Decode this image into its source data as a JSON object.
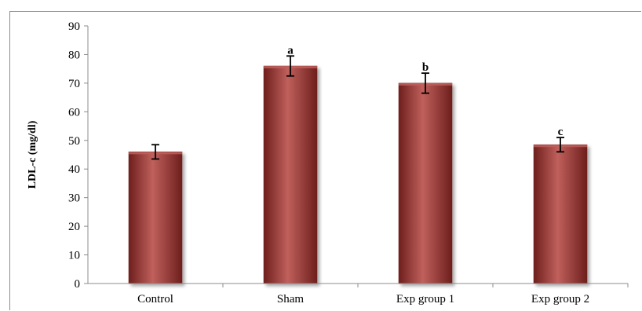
{
  "chart_data": {
    "type": "bar",
    "title": "",
    "xlabel": "",
    "ylabel": "LDL-c (mg/dl)",
    "ylim": [
      0,
      90
    ],
    "yticks": [
      0,
      10,
      20,
      30,
      40,
      50,
      60,
      70,
      80,
      90
    ],
    "grid": false,
    "legend": "none",
    "categories": [
      "Control",
      "Sham",
      "Exp group 1",
      "Exp group 2"
    ],
    "values": [
      46,
      76,
      70,
      48.5
    ],
    "errors": [
      2.5,
      3.5,
      3.5,
      2.5
    ],
    "annotations": [
      "",
      "a",
      "b",
      "c"
    ],
    "bar_color": "#9b3b38",
    "bar_highlight": "#c0605c",
    "bar_shadow": "#6e1f1d"
  }
}
